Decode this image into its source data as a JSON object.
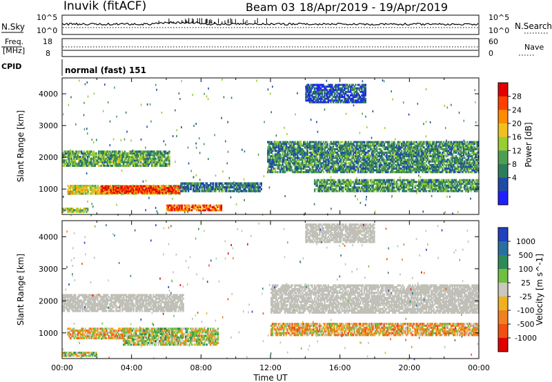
{
  "header": {
    "station": "Inuvik (fitACF)",
    "beam": "Beam 03",
    "date_range": "18/Apr/2019 - 19/Apr/2019"
  },
  "strip": {
    "nsky_label": "N.Sky",
    "nsky_ticks": [
      "10^5",
      "10^0"
    ],
    "nsearch_label": "N.Search",
    "nsearch_ticks": [
      "10^5",
      "10^0"
    ],
    "freq_label_1": "Freq.",
    "freq_label_2": "[MHz]",
    "freq_ticks": [
      "18",
      "8"
    ],
    "nave_label": "Nave",
    "nave_ticks": [
      "60",
      "0"
    ],
    "cpid_label": "CPID",
    "cpid_value": "normal (fast) 151"
  },
  "colors": {
    "power": [
      "#1f1fff",
      "#1e4aa8",
      "#2e7d5a",
      "#4e9e52",
      "#9acd32",
      "#f0c020",
      "#ff8c00",
      "#ff4000",
      "#e00000"
    ],
    "velocity": [
      "#2040c0",
      "#2a6fa0",
      "#2e8b57",
      "#70c040",
      "#c8c8c0",
      "#f0b020",
      "#f08020",
      "#f05010",
      "#e00000"
    ],
    "ground_scatter": "#c0c0b8"
  },
  "chart_data": [
    {
      "type": "heatmap",
      "name": "power-panel",
      "ylabel": "Slant Range [km]",
      "xlabel": "",
      "xlim": [
        "00:00",
        "24:00"
      ],
      "ylim": [
        200,
        4500
      ],
      "xticks": [
        "00:00",
        "04:00",
        "08:00",
        "12:00",
        "16:00",
        "20:00",
        "00:00"
      ],
      "yticks": [
        1000,
        2000,
        3000,
        4000
      ],
      "colorbar": {
        "label": "Power [dB]",
        "ticks": [
          "28",
          "24",
          "20",
          "16",
          "12",
          "8",
          "4"
        ]
      },
      "bands": [
        {
          "t0": 0.3,
          "t1": 6.8,
          "r0": 820,
          "r1": 1120,
          "v": 18
        },
        {
          "t0": 2.2,
          "t1": 6.8,
          "r0": 850,
          "r1": 1100,
          "v": 26
        },
        {
          "t0": 6.0,
          "t1": 9.2,
          "r0": 300,
          "r1": 500,
          "v": 24
        },
        {
          "t0": 0.0,
          "t1": 6.2,
          "r0": 1700,
          "r1": 2200,
          "v": 13
        },
        {
          "t0": 6.8,
          "t1": 11.5,
          "r0": 900,
          "r1": 1200,
          "v": 10
        },
        {
          "t0": 11.8,
          "t1": 24.0,
          "r0": 1500,
          "r1": 2500,
          "v": 11
        },
        {
          "t0": 14.5,
          "t1": 24.0,
          "r0": 900,
          "r1": 1300,
          "v": 12
        },
        {
          "t0": 14.0,
          "t1": 17.5,
          "r0": 3700,
          "r1": 4300,
          "v": 7
        },
        {
          "t0": 0.0,
          "t1": 1.5,
          "r0": 250,
          "r1": 400,
          "v": 16
        }
      ]
    },
    {
      "type": "heatmap",
      "name": "velocity-panel",
      "ylabel": "Slant Range [km]",
      "xlabel": "Time UT",
      "xlim": [
        "00:00",
        "24:00"
      ],
      "ylim": [
        200,
        4500
      ],
      "xticks": [
        "00:00",
        "04:00",
        "08:00",
        "12:00",
        "16:00",
        "20:00",
        "00:00"
      ],
      "yticks": [
        1000,
        2000,
        3000,
        4000
      ],
      "colorbar": {
        "label": "Velocity [m s^-1]",
        "ticks": [
          "1000",
          "500",
          "100",
          "25",
          "-25",
          "-100",
          "-500",
          "-1000"
        ]
      },
      "bands": [
        {
          "t0": 0.0,
          "t1": 7.0,
          "r0": 1650,
          "r1": 2200,
          "v": 0
        },
        {
          "t0": 0.3,
          "t1": 4.0,
          "r0": 800,
          "r1": 1150,
          "v": -150
        },
        {
          "t0": 3.5,
          "t1": 9.0,
          "r0": 600,
          "r1": 1150,
          "v": 200
        },
        {
          "t0": 12.0,
          "t1": 24.0,
          "r0": 1600,
          "r1": 2500,
          "v": 0
        },
        {
          "t0": 12.0,
          "t1": 24.0,
          "r0": 900,
          "r1": 1300,
          "v": -200
        },
        {
          "t0": 14.0,
          "t1": 18.0,
          "r0": 3800,
          "r1": 4400,
          "v": 0
        },
        {
          "t0": 0.0,
          "t1": 2.0,
          "r0": 250,
          "r1": 400,
          "v": 50
        }
      ]
    }
  ]
}
